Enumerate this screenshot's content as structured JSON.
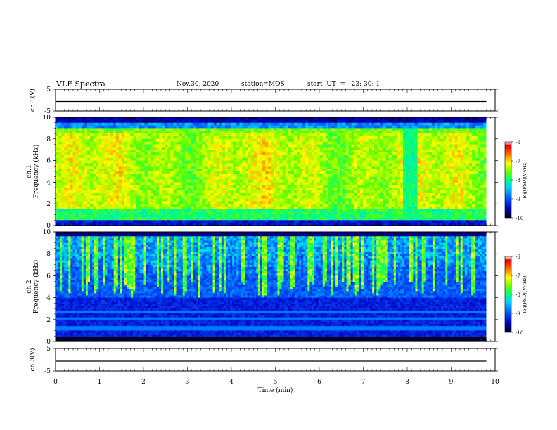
{
  "header": {
    "title": "VLF Spectra",
    "date": "Nov.30, 2020",
    "station": "station=MOS",
    "start": "start  UT  =   23: 30: 1"
  },
  "chart_data": [
    {
      "id": "ch1-waveform",
      "type": "line",
      "ylabel": "ch.1(V)",
      "ylim": [
        -5,
        5
      ],
      "y_ticks": [
        "5",
        "-5"
      ],
      "x_range": [
        0,
        10
      ],
      "series": [
        {
          "description": "flat waveform trace near 0 V",
          "x": [
            0,
            9.8
          ],
          "y": [
            0,
            0
          ]
        }
      ]
    },
    {
      "id": "ch1-spectrogram",
      "type": "heatmap",
      "ylabel": "ch.1\nFrequency (kHz)",
      "ylim": [
        0,
        10
      ],
      "y_ticks": [
        "0",
        "2",
        "4",
        "6",
        "8",
        "10"
      ],
      "x_range": [
        0,
        10
      ],
      "data_end_min": 9.8,
      "colorbar": {
        "label": "log(PSD)(V²/Hz)",
        "ticks": [
          "-6",
          "-7",
          "-8",
          "-9",
          "-10"
        ],
        "range": [
          -10,
          -6
        ]
      },
      "features": [
        {
          "description": "broadband intense emission (red/yellow) from ~0.5 to ~9 kHz",
          "x_range": [
            0,
            9.8
          ],
          "log_psd": -7
        },
        {
          "description": "cut-off band above ~9.3 kHz (dark/blue)",
          "f_range": [
            9.3,
            10
          ],
          "log_psd": -10
        },
        {
          "description": "weak band around ~7.95–8.15 min (green)",
          "x_range": [
            7.95,
            8.15
          ],
          "log_psd": -8
        }
      ]
    },
    {
      "id": "ch2-spectrogram",
      "type": "heatmap",
      "ylabel": "ch.2\nFrequency (kHz)",
      "ylim": [
        0,
        10
      ],
      "y_ticks": [
        "0",
        "2",
        "4",
        "6",
        "8",
        "10"
      ],
      "x_range": [
        0,
        10
      ],
      "data_end_min": 9.8,
      "colorbar": {
        "label": "log(PSD)(V²/Hz)",
        "ticks": [
          "-6",
          "-7",
          "-8",
          "-9",
          "-10"
        ],
        "range": [
          -10,
          -6
        ]
      },
      "features": [
        {
          "description": "spiky vertical emissions concentrated between ~4 and ~10 kHz",
          "x_range": [
            0,
            9.8
          ],
          "log_psd": -7.5
        },
        {
          "description": "background below ~4 kHz (blue)",
          "f_range": [
            0,
            4
          ],
          "log_psd": -9.3
        },
        {
          "description": "narrow-band lines near 1.1, 1.4, 2.0 and 2.7 kHz",
          "log_psd": -8.8
        }
      ]
    },
    {
      "id": "ch3-waveform",
      "type": "line",
      "ylabel": "ch.3(V)",
      "ylim": [
        -5,
        5
      ],
      "y_ticks": [
        "5",
        "-5"
      ],
      "x_range": [
        0,
        10
      ],
      "xlabel": "Time  (min)",
      "x_ticks": [
        "0",
        "1",
        "2",
        "3",
        "4",
        "5",
        "6",
        "7",
        "8",
        "9",
        "10"
      ],
      "series": [
        {
          "description": "flat waveform trace near 0 V",
          "x": [
            0,
            9.8
          ],
          "y": [
            0,
            0
          ]
        }
      ]
    }
  ]
}
